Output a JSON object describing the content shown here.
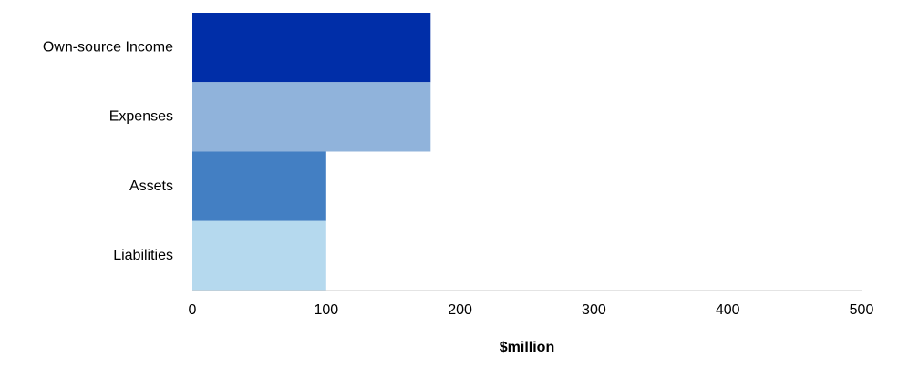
{
  "chart_data": {
    "type": "barh",
    "categories": [
      "Own-source Income",
      "Expenses",
      "Assets",
      "Liabilities"
    ],
    "values": [
      178,
      178,
      100,
      100
    ],
    "colors": [
      "#002ea8",
      "#90b3db",
      "#437fc3",
      "#b5d9ee"
    ],
    "xlabel": "$million",
    "xlim": [
      0,
      500
    ],
    "xticks": [
      0,
      100,
      200,
      300,
      400,
      500
    ]
  }
}
